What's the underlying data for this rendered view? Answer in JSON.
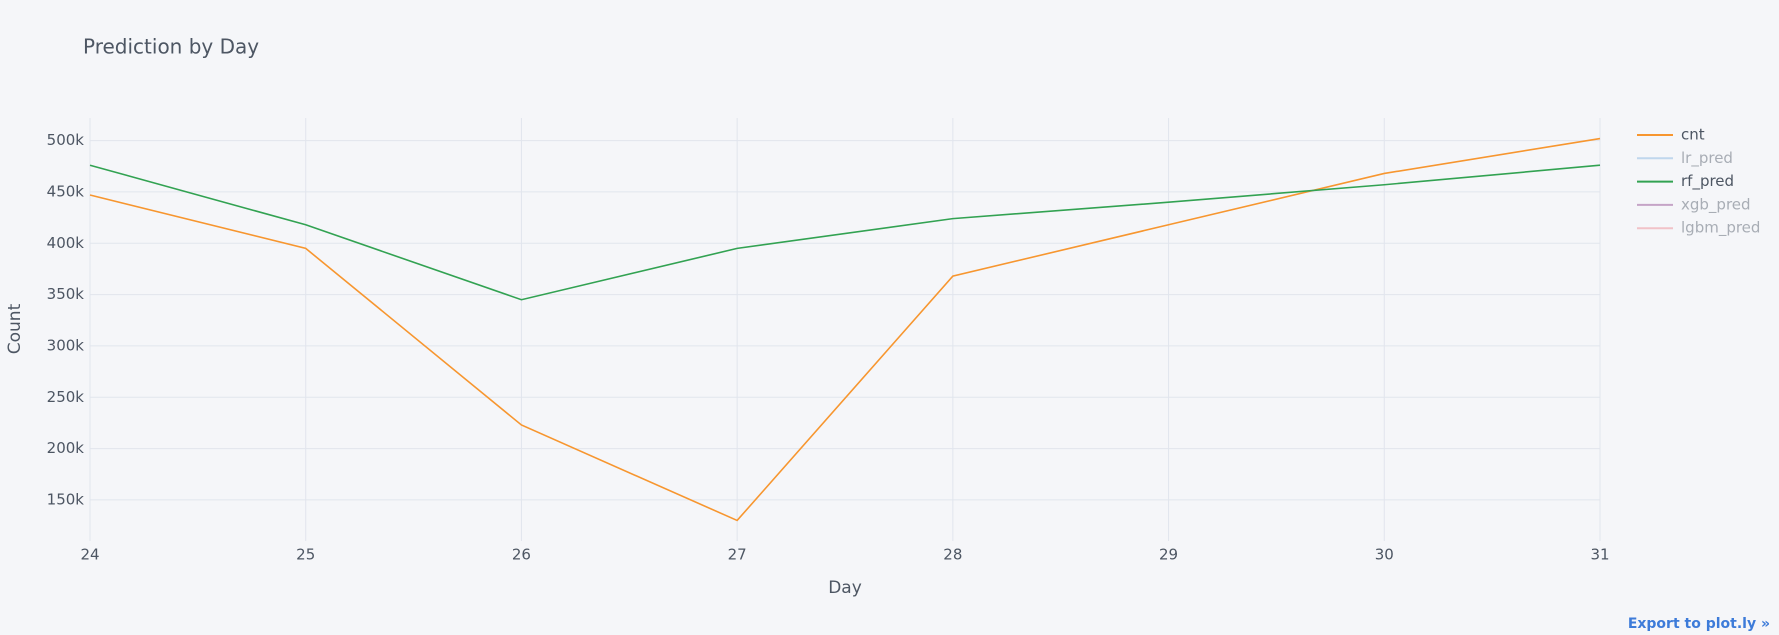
{
  "chart_data": {
    "type": "line",
    "title": "Prediction by Day",
    "x_label": "Day",
    "y_label": "Count",
    "x": [
      24,
      25,
      26,
      27,
      28,
      29,
      30,
      31
    ],
    "series": [
      {
        "name": "cnt",
        "color": "#f7962f",
        "visible": true,
        "values": [
          447000,
          395000,
          223000,
          130000,
          368000,
          418000,
          468000,
          502000
        ]
      },
      {
        "name": "lr_pred",
        "color": "#9ec3e6",
        "visible": "legendonly",
        "values": [
          null,
          null,
          null,
          null,
          null,
          null,
          null,
          null
        ]
      },
      {
        "name": "rf_pred",
        "color": "#32a252",
        "visible": true,
        "values": [
          476000,
          418000,
          345000,
          395000,
          424000,
          440000,
          457000,
          476000
        ]
      },
      {
        "name": "xgb_pred",
        "color": "#a66fa6",
        "visible": "legendonly",
        "values": [
          null,
          null,
          null,
          null,
          null,
          null,
          null,
          null
        ]
      },
      {
        "name": "lgbm_pred",
        "color": "#f0a0a8",
        "visible": "legendonly",
        "values": [
          null,
          null,
          null,
          null,
          null,
          null,
          null,
          null
        ]
      }
    ],
    "xlim": [
      24,
      31
    ],
    "xticks": [
      24,
      25,
      26,
      27,
      28,
      29,
      30,
      31
    ],
    "ylim": [
      110000,
      522000
    ],
    "yticks": [
      {
        "value": 150000,
        "label": "150k"
      },
      {
        "value": 200000,
        "label": "200k"
      },
      {
        "value": 250000,
        "label": "250k"
      },
      {
        "value": 300000,
        "label": "300k"
      },
      {
        "value": 350000,
        "label": "350k"
      },
      {
        "value": 400000,
        "label": "400k"
      },
      {
        "value": 450000,
        "label": "450k"
      },
      {
        "value": 500000,
        "label": "500k"
      }
    ],
    "grid": true,
    "legend": "right"
  },
  "export_link": "Export to plot.ly »"
}
